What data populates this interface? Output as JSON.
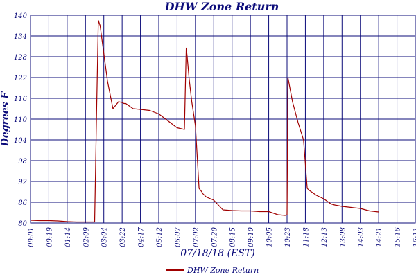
{
  "chart_data": {
    "type": "line",
    "title": "DHW Zone Return",
    "xlabel": "07/18/18 (EST)",
    "ylabel": "Degrees F",
    "ylim": [
      80,
      140
    ],
    "yticks": [
      80,
      86,
      92,
      98,
      104,
      110,
      116,
      122,
      128,
      134,
      140
    ],
    "xticks": [
      "00:01",
      "00:19",
      "01:14",
      "02:09",
      "03:04",
      "03:22",
      "04:17",
      "05:12",
      "06:07",
      "07:02",
      "07:20",
      "08:15",
      "09:10",
      "10:05",
      "10:23",
      "11:18",
      "12:13",
      "13:08",
      "14:03",
      "14:21",
      "15:16",
      "16:11"
    ],
    "grid": true,
    "legend_position": "bottom-center",
    "series": [
      {
        "name": "DHW Zone Return",
        "color": "#a00000",
        "x": [
          0,
          0.5,
          1,
          1.5,
          2,
          2.5,
          3,
          3.5,
          3.6,
          3.7,
          3.8,
          4.0,
          4.2,
          4.5,
          4.8,
          5.0,
          5.1,
          5.2,
          5.6,
          6.0,
          6.5,
          7.0,
          7.5,
          8.0,
          8.4,
          8.5,
          8.55,
          8.65,
          8.8,
          9.0,
          9.2,
          9.35,
          9.4,
          9.6,
          10.0,
          10.5,
          11.0,
          11.5,
          12.0,
          12.5,
          13.0,
          13.5,
          13.9,
          14.0,
          14.05,
          14.3,
          14.6,
          14.9,
          15.1,
          15.2,
          15.6,
          16.0,
          16.4,
          16.6,
          17.0,
          17.5,
          18.0,
          18.5,
          19.0
        ],
        "y": [
          80.8,
          80.7,
          80.7,
          80.6,
          80.4,
          80.3,
          80.3,
          80.3,
          110,
          138.5,
          137,
          129,
          121,
          113,
          115,
          114.8,
          114.5,
          114.5,
          113,
          112.8,
          112.5,
          111.5,
          109.5,
          107.5,
          107,
          130.5,
          128,
          122,
          115,
          108,
          90,
          89,
          88.5,
          87.5,
          86.6,
          83.8,
          83.6,
          83.5,
          83.5,
          83.3,
          83.3,
          82.4,
          82.2,
          82.4,
          122,
          115,
          109,
          104,
          90,
          89.5,
          88,
          87,
          85.5,
          85.2,
          84.8,
          84.5,
          84.2,
          83.5,
          83.2
        ]
      }
    ]
  }
}
